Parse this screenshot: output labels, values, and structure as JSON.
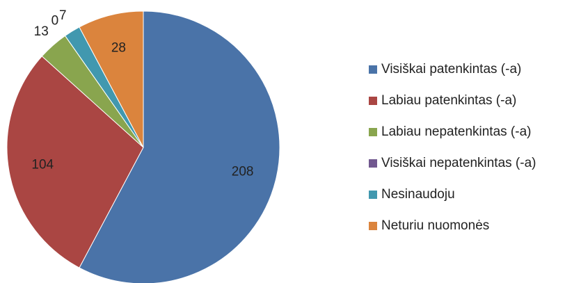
{
  "chart_data": {
    "type": "pie",
    "categories": [
      "Visiškai patenkintas (-a)",
      "Labiau patenkintas (-a)",
      "Labiau nepatenkintas (-a)",
      "Visiškai nepatenkintas (-a)",
      "Nesinaudoju",
      "Neturiu nuomonės"
    ],
    "values": [
      208,
      104,
      13,
      0,
      7,
      28
    ],
    "colors": [
      "#4a73a8",
      "#aa4643",
      "#89a54e",
      "#71588f",
      "#4198af",
      "#db843d"
    ],
    "legend": "right"
  }
}
